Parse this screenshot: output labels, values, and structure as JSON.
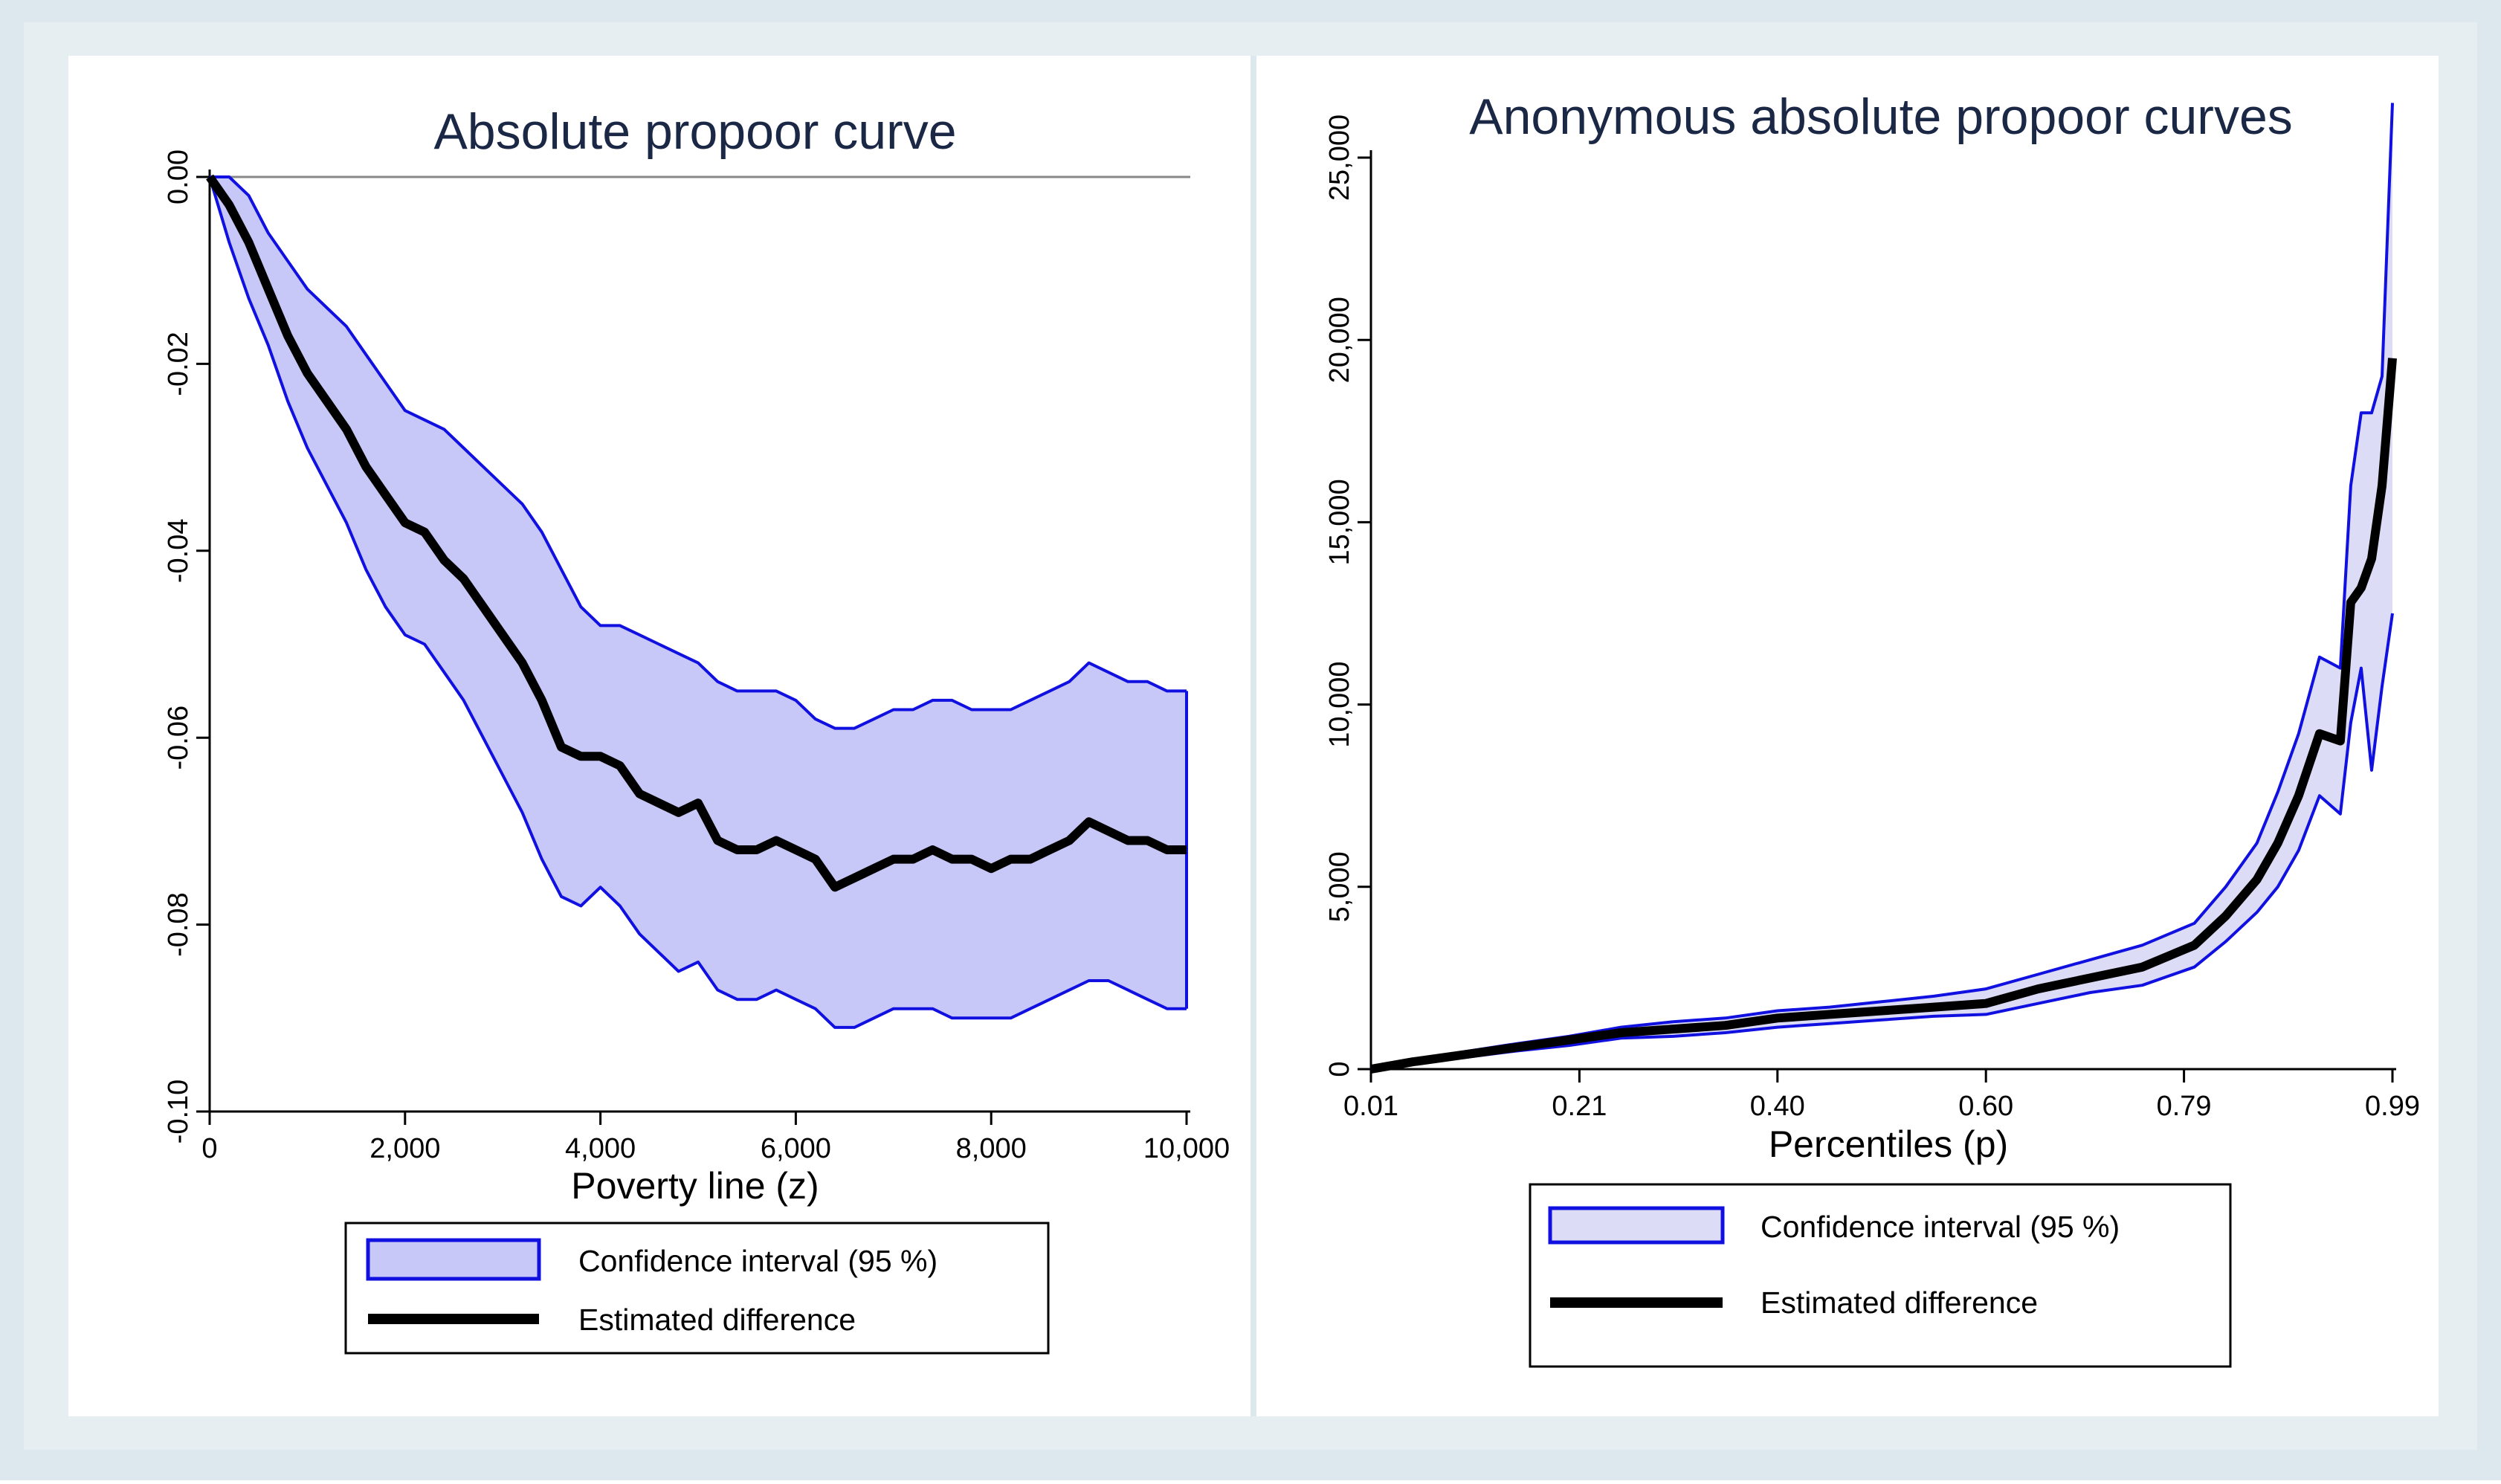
{
  "colors": {
    "outer_bg": "#dde8ee",
    "panel_bg": "#ffffff",
    "ci_fill_left": "#c8c8f8",
    "ci_fill_right": "#dcdcf6",
    "ci_stroke": "#1010e0",
    "estimate_line": "#000000",
    "zero_line": "#888888",
    "title_color": "#1a2745"
  },
  "chart_data": [
    {
      "type": "line",
      "title": "Absolute propoor curve",
      "xlabel": "Poverty line (z)",
      "ylabel": "",
      "xlim": [
        0,
        10000
      ],
      "ylim": [
        -0.1,
        0.0
      ],
      "xticks": [
        0,
        2000,
        4000,
        6000,
        8000,
        10000
      ],
      "xtick_labels": [
        "0",
        "2,000",
        "4,000",
        "6,000",
        "8,000",
        "10,000"
      ],
      "yticks": [
        0,
        -0.02,
        -0.04,
        -0.06,
        -0.08,
        -0.1
      ],
      "ytick_labels": [
        "0.00",
        "-0.02",
        "-0.04",
        "-0.06",
        "-0.08",
        "-0.10"
      ],
      "reference_line_y": 0,
      "legend": {
        "position": "bottom",
        "entries": [
          "Confidence interval (95 %)",
          "Estimated difference"
        ]
      },
      "x": [
        0,
        200,
        400,
        600,
        800,
        1000,
        1200,
        1400,
        1600,
        1800,
        2000,
        2200,
        2400,
        2600,
        2800,
        3000,
        3200,
        3400,
        3600,
        3800,
        4000,
        4200,
        4400,
        4600,
        4800,
        5000,
        5200,
        5400,
        5600,
        5800,
        6000,
        6200,
        6400,
        6600,
        6800,
        7000,
        7200,
        7400,
        7600,
        7800,
        8000,
        8200,
        8400,
        8600,
        8800,
        9000,
        9200,
        9400,
        9600,
        9800,
        10000
      ],
      "series": [
        {
          "name": "Estimated difference",
          "values": [
            0,
            -0.003,
            -0.007,
            -0.012,
            -0.017,
            -0.021,
            -0.024,
            -0.027,
            -0.031,
            -0.034,
            -0.037,
            -0.038,
            -0.041,
            -0.043,
            -0.046,
            -0.049,
            -0.052,
            -0.056,
            -0.061,
            -0.062,
            -0.062,
            -0.063,
            -0.066,
            -0.067,
            -0.068,
            -0.067,
            -0.071,
            -0.072,
            -0.072,
            -0.071,
            -0.072,
            -0.073,
            -0.076,
            -0.075,
            -0.074,
            -0.073,
            -0.073,
            -0.072,
            -0.073,
            -0.073,
            -0.074,
            -0.073,
            -0.073,
            -0.072,
            -0.071,
            -0.069,
            -0.07,
            -0.071,
            -0.071,
            -0.072,
            -0.072
          ]
        },
        {
          "name": "CI upper",
          "values": [
            0,
            0,
            -0.002,
            -0.006,
            -0.009,
            -0.012,
            -0.014,
            -0.016,
            -0.019,
            -0.022,
            -0.025,
            -0.026,
            -0.027,
            -0.029,
            -0.031,
            -0.033,
            -0.035,
            -0.038,
            -0.042,
            -0.046,
            -0.048,
            -0.048,
            -0.049,
            -0.05,
            -0.051,
            -0.052,
            -0.054,
            -0.055,
            -0.055,
            -0.055,
            -0.056,
            -0.058,
            -0.059,
            -0.059,
            -0.058,
            -0.057,
            -0.057,
            -0.056,
            -0.056,
            -0.057,
            -0.057,
            -0.057,
            -0.056,
            -0.055,
            -0.054,
            -0.052,
            -0.053,
            -0.054,
            -0.054,
            -0.055,
            -0.055
          ]
        },
        {
          "name": "CI lower",
          "values": [
            0,
            -0.007,
            -0.013,
            -0.018,
            -0.024,
            -0.029,
            -0.033,
            -0.037,
            -0.042,
            -0.046,
            -0.049,
            -0.05,
            -0.053,
            -0.056,
            -0.06,
            -0.064,
            -0.068,
            -0.073,
            -0.077,
            -0.078,
            -0.076,
            -0.078,
            -0.081,
            -0.083,
            -0.085,
            -0.084,
            -0.087,
            -0.088,
            -0.088,
            -0.087,
            -0.088,
            -0.089,
            -0.091,
            -0.091,
            -0.09,
            -0.089,
            -0.089,
            -0.089,
            -0.09,
            -0.09,
            -0.09,
            -0.09,
            -0.089,
            -0.088,
            -0.087,
            -0.086,
            -0.086,
            -0.087,
            -0.088,
            -0.089,
            -0.089
          ]
        }
      ]
    },
    {
      "type": "line",
      "title": "Anonymous absolute propoor curves",
      "xlabel": "Percentiles (p)",
      "ylabel": "",
      "xlim": [
        0.01,
        0.99
      ],
      "ylim": [
        0,
        25000
      ],
      "xticks": [
        0.01,
        0.21,
        0.4,
        0.6,
        0.79,
        0.99
      ],
      "xtick_labels": [
        "0.01",
        "0.21",
        "0.40",
        "0.60",
        "0.79",
        "0.99"
      ],
      "yticks": [
        0,
        5000,
        10000,
        15000,
        20000,
        25000
      ],
      "ytick_labels": [
        "0",
        "5,000",
        "10,000",
        "15,000",
        "20,000",
        "25,000"
      ],
      "legend": {
        "position": "bottom",
        "entries": [
          "Confidence interval (95 %)",
          "Estimated difference"
        ]
      },
      "x": [
        0.01,
        0.05,
        0.1,
        0.15,
        0.2,
        0.25,
        0.3,
        0.35,
        0.4,
        0.45,
        0.5,
        0.55,
        0.6,
        0.65,
        0.7,
        0.75,
        0.8,
        0.83,
        0.86,
        0.88,
        0.9,
        0.92,
        0.94,
        0.95,
        0.96,
        0.97,
        0.98,
        0.99
      ],
      "series": [
        {
          "name": "Estimated difference",
          "values": [
            0,
            200,
            400,
            600,
            800,
            1000,
            1100,
            1200,
            1400,
            1500,
            1600,
            1700,
            1800,
            2200,
            2500,
            2800,
            3400,
            4200,
            5200,
            6200,
            7500,
            9200,
            9000,
            12800,
            13200,
            14000,
            16000,
            19500
          ]
        },
        {
          "name": "CI upper",
          "values": [
            0,
            250,
            480,
            700,
            900,
            1150,
            1300,
            1400,
            1600,
            1700,
            1850,
            2000,
            2200,
            2600,
            3000,
            3400,
            4000,
            5000,
            6200,
            7600,
            9200,
            11300,
            11000,
            16000,
            18000,
            18000,
            19000,
            26500
          ]
        },
        {
          "name": "CI lower",
          "values": [
            0,
            150,
            320,
            500,
            650,
            850,
            900,
            1000,
            1150,
            1250,
            1350,
            1450,
            1500,
            1800,
            2100,
            2300,
            2800,
            3500,
            4300,
            5000,
            6000,
            7500,
            7000,
            9500,
            11000,
            8200,
            10500,
            12500
          ]
        }
      ]
    }
  ]
}
